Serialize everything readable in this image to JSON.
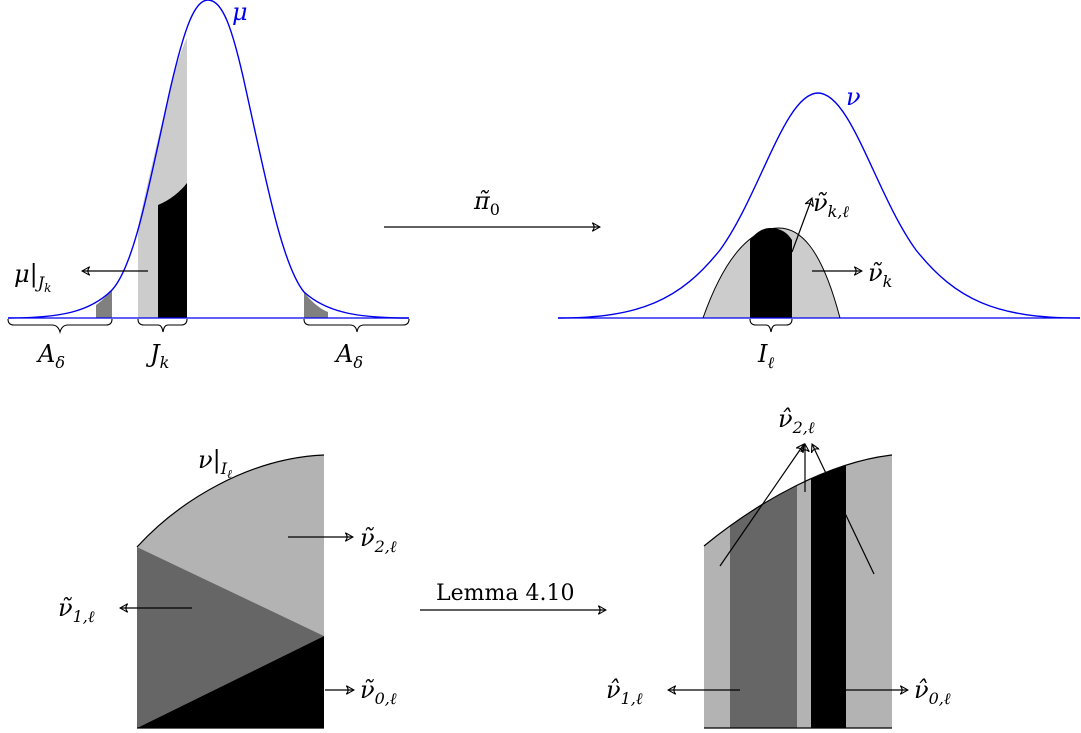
{
  "top_left": {
    "mu_label": "μ",
    "restriction_label": "μ|",
    "restriction_sub": "J",
    "restriction_subsub": "k",
    "a_delta_left": "A",
    "a_delta_left_sub": "δ",
    "j_k": "J",
    "j_k_sub": "k",
    "a_delta_right": "A",
    "a_delta_right_sub": "δ"
  },
  "top_middle": {
    "map_label": "π̃",
    "map_label_sub": "0"
  },
  "top_right": {
    "nu_label": "ν",
    "nu_k_ell": "ν̃",
    "nu_k_ell_sub": "k,ℓ",
    "nu_k": "ν̃",
    "nu_k_sub": "k",
    "i_ell": "I",
    "i_ell_sub": "ℓ"
  },
  "bottom_left": {
    "restriction_label": "ν|",
    "restriction_sub": "I",
    "restriction_subsub": "ℓ",
    "nu2": "ν̃",
    "nu2_sub": "2,ℓ",
    "nu1": "ν̃",
    "nu1_sub": "1,ℓ",
    "nu0": "ν̃",
    "nu0_sub": "0,ℓ"
  },
  "bottom_middle": {
    "lemma_label": "Lemma 4.10"
  },
  "bottom_right": {
    "nu2_hat": "ν̂",
    "nu2_hat_sub": "2,ℓ",
    "nu1_hat": "ν̂",
    "nu1_hat_sub": "1,ℓ",
    "nu0_hat": "ν̂",
    "nu0_hat_sub": "0,ℓ"
  },
  "colors": {
    "curve": "#0000ee",
    "light_gray": "#cccccc",
    "mid_gray": "#b3b3b3",
    "dark_gray": "#666666",
    "shade_gray": "#808080",
    "black": "#000000"
  }
}
